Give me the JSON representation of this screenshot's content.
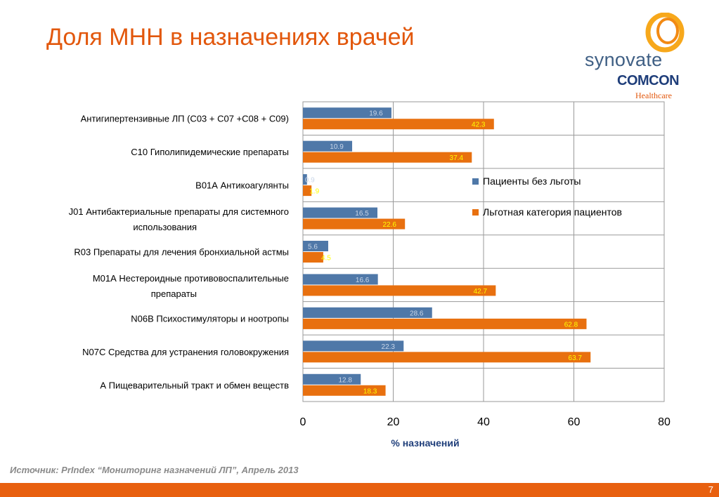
{
  "slide": {
    "title": "Доля МНН в назначениях врачей",
    "source": "Источник: PrIndex “Мониторинг назначений ЛП”, Апрель 2013",
    "page_number": "7"
  },
  "logo": {
    "line1": "synovate",
    "line2": "COMCON",
    "line3": "Healthcare"
  },
  "colors": {
    "title": "#e2570c",
    "series1": "#4f78a8",
    "series2": "#e8700f",
    "label1": "#c9d6e8",
    "label2": "#ffff00",
    "footer": "#e8600f"
  },
  "chart_data": {
    "type": "bar",
    "orientation": "horizontal",
    "xlabel": "% назначений",
    "xlim": [
      0,
      80
    ],
    "xticks": [
      "0",
      "20",
      "40",
      "60",
      "80"
    ],
    "grid": true,
    "legend_position": "right-middle",
    "categories": [
      [
        "Антигипертензивные ЛП (С03 + С07 +С08 + С09)"
      ],
      [
        "С10 Гиполипидемические препараты"
      ],
      [
        "В01А Антикоагулянты"
      ],
      [
        "J01 Антибактериальные  препараты для системного",
        "использования"
      ],
      [
        "R03 Препараты для лечения бронхиальной астмы"
      ],
      [
        "М01А Нестероидные противовоспалительные",
        "препараты"
      ],
      [
        "N06B Психостимуляторы и ноотропы"
      ],
      [
        "N07C Средства для устранения головокружения"
      ],
      [
        "А Пищеварительный тракт и обмен веществ"
      ]
    ],
    "series": [
      {
        "name": "Пациенты без льготы",
        "values": [
          19.6,
          10.9,
          0.9,
          16.5,
          5.6,
          16.6,
          28.6,
          22.3,
          12.8
        ]
      },
      {
        "name": "Льготная категория пациентов",
        "values": [
          42.3,
          37.4,
          1.9,
          22.6,
          4.5,
          42.7,
          62.8,
          63.7,
          18.3
        ]
      }
    ]
  }
}
